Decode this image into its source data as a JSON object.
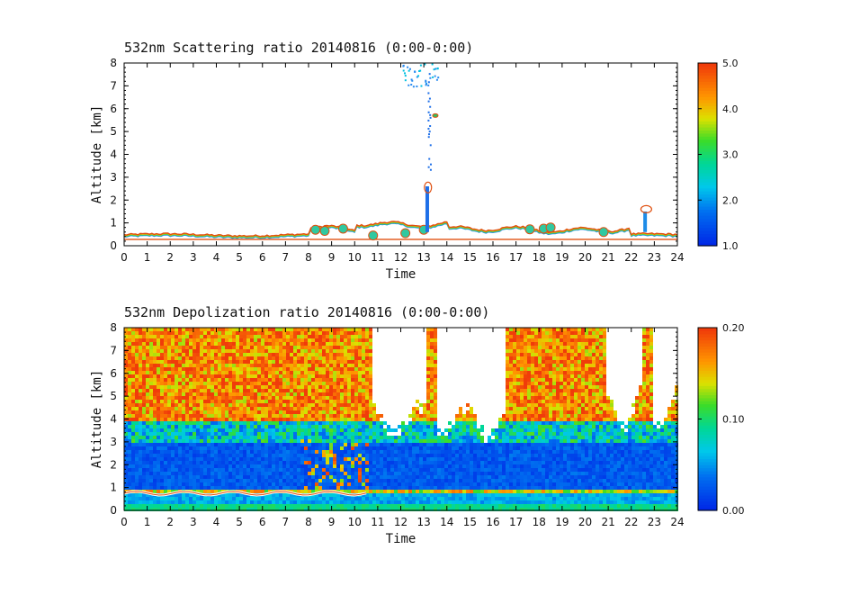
{
  "chart_data": [
    {
      "type": "heatmap",
      "title": "532nm Scattering ratio  20140816 (0:00-0:00)",
      "xlabel": "Time",
      "ylabel": "Altitude [km]",
      "xlim": [
        0,
        24
      ],
      "ylim": [
        0,
        8
      ],
      "x_ticks": [
        "0",
        "1",
        "2",
        "3",
        "4",
        "5",
        "6",
        "7",
        "8",
        "9",
        "10",
        "11",
        "12",
        "13",
        "14",
        "15",
        "16",
        "17",
        "18",
        "19",
        "20",
        "21",
        "22",
        "23",
        "24"
      ],
      "y_ticks": [
        "0",
        "1",
        "2",
        "3",
        "4",
        "5",
        "6",
        "7",
        "8"
      ],
      "colorbar": {
        "range": [
          1.0,
          5.0
        ],
        "ticks": [
          "1.0",
          "2.0",
          "3.0",
          "4.0",
          "5.0"
        ]
      }
    },
    {
      "type": "heatmap",
      "title": "532nm Depolization ratio  20140816 (0:00-0:00)",
      "xlabel": "Time",
      "ylabel": "Altitude [km]",
      "xlim": [
        0,
        24
      ],
      "ylim": [
        0,
        8
      ],
      "x_ticks": [
        "0",
        "1",
        "2",
        "3",
        "4",
        "5",
        "6",
        "7",
        "8",
        "9",
        "10",
        "11",
        "12",
        "13",
        "14",
        "15",
        "16",
        "17",
        "18",
        "19",
        "20",
        "21",
        "22",
        "23",
        "24"
      ],
      "y_ticks": [
        "0",
        "1",
        "2",
        "3",
        "4",
        "5",
        "6",
        "7",
        "8"
      ],
      "colorbar": {
        "range": [
          0.0,
          0.2
        ],
        "ticks": [
          "0.00",
          "0.10",
          "0.20"
        ]
      }
    }
  ]
}
